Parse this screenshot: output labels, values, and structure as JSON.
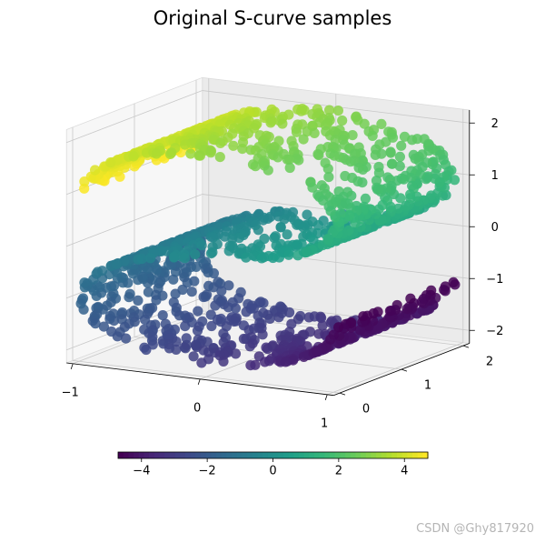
{
  "chart_data": {
    "type": "scatter",
    "title": "Original S-curve samples",
    "x_ticks": [
      "−1",
      "0",
      "1"
    ],
    "y_ticks": [
      "0",
      "1",
      "2"
    ],
    "z_ticks": [
      "−2",
      "−1",
      "0",
      "1",
      "2"
    ],
    "xlim": [
      -1,
      1
    ],
    "ylim": [
      0,
      2
    ],
    "zlim": [
      -2,
      2
    ],
    "grid": true,
    "colormap": "viridis",
    "color_value": "t",
    "n_samples": 1500,
    "colorbar": {
      "orientation": "horizontal",
      "range": [
        -4.712,
        4.712
      ],
      "ticks": [
        "−4",
        "−2",
        "0",
        "2",
        "4"
      ]
    },
    "point_alpha": 0.85
  },
  "watermark": "CSDN @Ghy817920"
}
